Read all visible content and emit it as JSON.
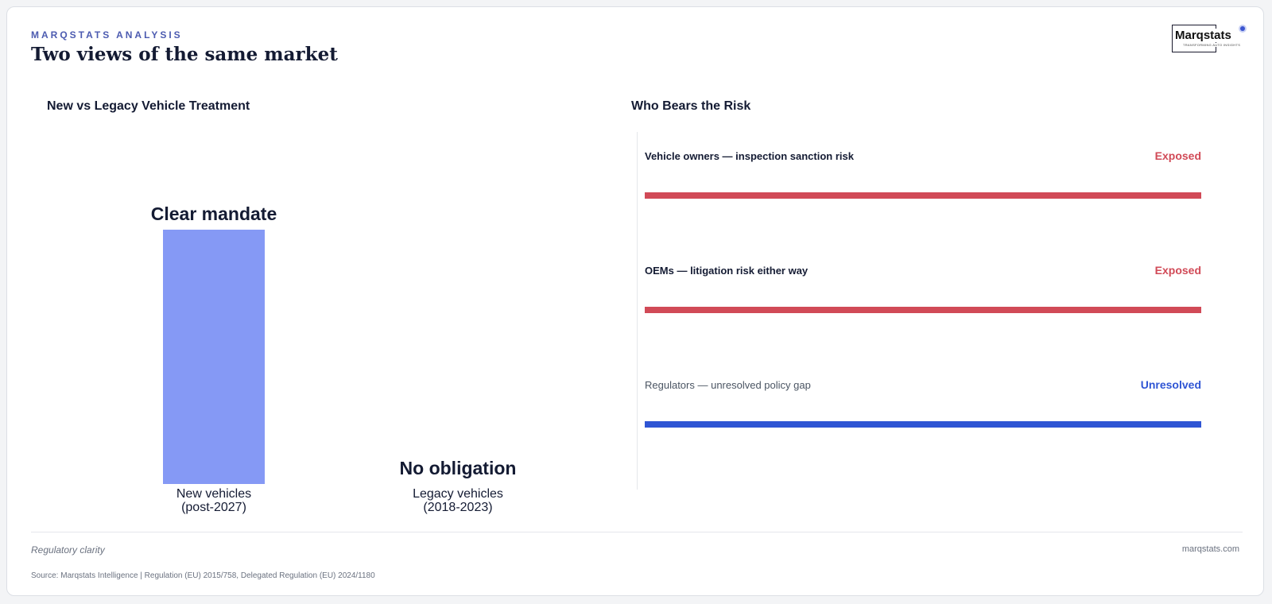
{
  "header": {
    "eyebrow": "MARQSTATS ANALYSIS",
    "title": "Two views of the same market"
  },
  "logo": {
    "wordmark": "Marqstats",
    "tagline": "TRANSFORMING AUTO INSIGHTS"
  },
  "chart_data": [
    {
      "type": "bar",
      "title": "New vs Legacy Vehicle Treatment",
      "categories": [
        "New vehicles (post-2027)",
        "Legacy vehicles (2018-2023)"
      ],
      "category_lines": [
        [
          "New vehicles",
          "(post-2027)"
        ],
        [
          "Legacy vehicles",
          "(2018-2023)"
        ]
      ],
      "values": [
        1,
        0
      ],
      "data_labels": [
        "Clear mandate",
        "No obligation"
      ],
      "ylim": [
        0,
        1
      ],
      "bar_color": "#8599f5",
      "grid": false,
      "legend": false
    },
    {
      "type": "bar",
      "orientation": "horizontal",
      "title": "Who Bears the Risk",
      "categories": [
        "Vehicle owners — inspection sanction risk",
        "OEMs — litigation risk either way",
        "Regulators — unresolved policy gap"
      ],
      "values": [
        1,
        1,
        1
      ],
      "status_labels": [
        "Exposed",
        "Exposed",
        "Unresolved"
      ],
      "colors": [
        "#d14a57",
        "#d14a57",
        "#2f55d4"
      ],
      "label_weights": [
        "bold",
        "bold",
        "normal"
      ]
    }
  ],
  "footer": {
    "caption": "Regulatory clarity",
    "site": "marqstats.com",
    "source": "Source: Marqstats Intelligence | Regulation (EU) 2015/758, Delegated Regulation (EU) 2024/1180"
  }
}
